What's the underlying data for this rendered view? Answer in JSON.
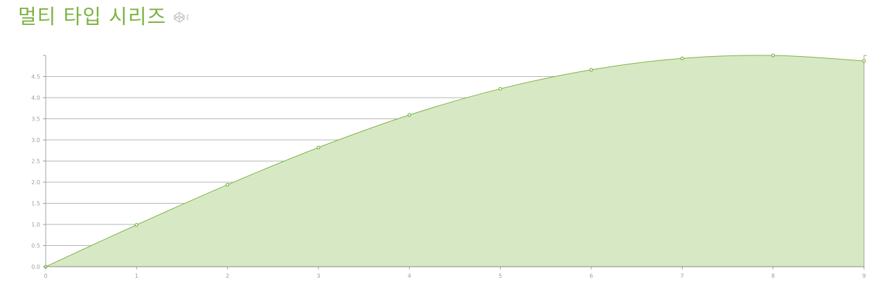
{
  "title": "멀티 타입 시리즈",
  "icons": {
    "title_link": "codepen-link-icon"
  },
  "colors": {
    "accent": "#7cb342",
    "area_fill": "#d7e9c4",
    "line": "#7cb342",
    "grid": "#9e9e9e",
    "tick_text": "#9e9e9e"
  },
  "chart_data": {
    "type": "area",
    "title": "",
    "xlabel": "",
    "ylabel": "",
    "x": [
      0,
      1,
      2,
      3,
      4,
      5,
      6,
      7,
      8,
      9
    ],
    "series": [
      {
        "values": [
          0,
          0.99,
          1.94,
          2.82,
          3.59,
          4.21,
          4.66,
          4.93,
          5.0,
          4.87
        ]
      }
    ],
    "xlim": [
      0,
      9
    ],
    "ylim": [
      0,
      5
    ],
    "x_ticks": [
      "0",
      "1",
      "2",
      "3",
      "4",
      "5",
      "6",
      "7",
      "8",
      "9"
    ],
    "y_ticks": [
      "0.0",
      "0.5",
      "1.0",
      "1.5",
      "2.0",
      "2.5",
      "3.0",
      "3.5",
      "4.0",
      "4.5"
    ],
    "y_tick_values": [
      0,
      0.5,
      1.0,
      1.5,
      2.0,
      2.5,
      3.0,
      3.5,
      4.0,
      4.5
    ],
    "grid": true,
    "markers": true,
    "legend": "none"
  }
}
